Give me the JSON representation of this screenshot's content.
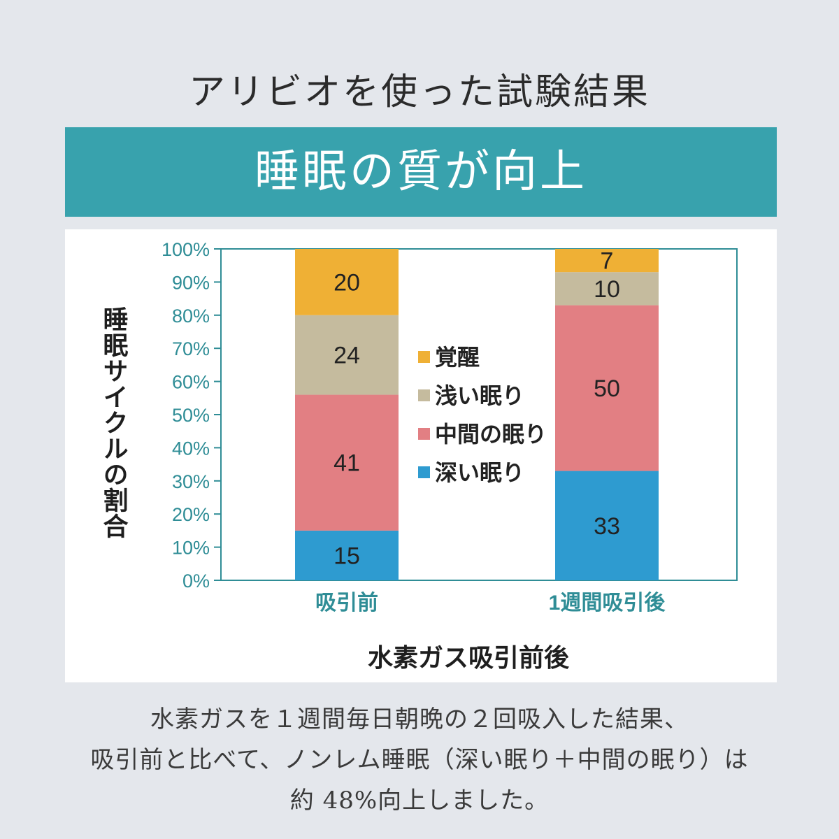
{
  "header": {
    "title": "アリビオを使った試験結果",
    "banner": "睡眠の質が向上"
  },
  "chart_data": {
    "type": "bar",
    "stacked": true,
    "categories": [
      "吸引前",
      "1週間吸引後"
    ],
    "series": [
      {
        "name": "深い眠り",
        "values": [
          15,
          33
        ],
        "color": "#2e9bd0"
      },
      {
        "name": "中間の眠り",
        "values": [
          41,
          50
        ],
        "color": "#e27f83"
      },
      {
        "name": "浅い眠り",
        "values": [
          24,
          10
        ],
        "color": "#c5bb9e"
      },
      {
        "name": "覚醒",
        "values": [
          20,
          7
        ],
        "color": "#efb035"
      }
    ],
    "legend_order": [
      "覚醒",
      "浅い眠り",
      "中間の眠り",
      "深い眠り"
    ],
    "y_ticks": [
      "0%",
      "10%",
      "20%",
      "30%",
      "40%",
      "50%",
      "60%",
      "70%",
      "80%",
      "90%",
      "100%"
    ],
    "ylim": [
      0,
      100
    ],
    "ylabel": "睡眠サイクルの割合",
    "xlabel": "水素ガス吸引前後",
    "legend_position": "center",
    "grid": false,
    "axis_color": "#2f8d96"
  },
  "caption": {
    "line1": "水素ガスを１週間毎日朝晩の２回吸入した結果、",
    "line2": "吸引前と比べて、ノンレム睡眠（深い眠り＋中間の眠り）は",
    "line3": "約 48%向上しました。"
  }
}
